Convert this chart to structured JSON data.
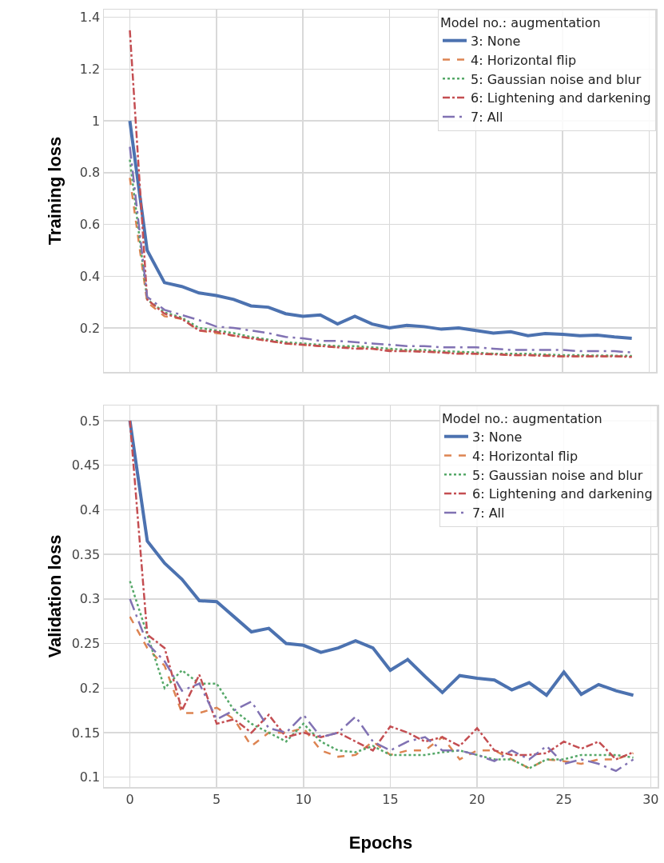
{
  "chart_data": [
    {
      "type": "line",
      "ylabel": "Training loss",
      "legend_title": "Model no.: augmentation",
      "legend": "top right",
      "grid": true,
      "tick_labels": "y",
      "xlim": [
        -1.5,
        30.4
      ],
      "xticks": [
        0,
        5,
        10,
        15,
        20,
        25,
        30
      ],
      "ylim": [
        0.03,
        1.43
      ],
      "yticks": [
        0.2,
        0.4,
        0.6,
        0.8,
        1.0,
        1.2,
        1.4
      ],
      "x": [
        0,
        1,
        2,
        3,
        4,
        5,
        6,
        7,
        8,
        9,
        10,
        11,
        12,
        13,
        14,
        15,
        16,
        17,
        18,
        19,
        20,
        21,
        22,
        23,
        24,
        25,
        26,
        27,
        28,
        29
      ],
      "series": [
        {
          "name": "3: None",
          "color": "#4c72b0",
          "line_style": "solid",
          "values": [
            1.0,
            0.5,
            0.375,
            0.36,
            0.335,
            0.325,
            0.31,
            0.285,
            0.28,
            0.255,
            0.245,
            0.25,
            0.215,
            0.245,
            0.215,
            0.2,
            0.21,
            0.205,
            0.195,
            0.2,
            0.19,
            0.18,
            0.185,
            0.17,
            0.178,
            0.175,
            0.17,
            0.172,
            0.165,
            0.16
          ]
        },
        {
          "name": "4: Horizontal flip",
          "color": "#dd8452",
          "line_style": "dashed",
          "values": [
            0.78,
            0.3,
            0.245,
            0.235,
            0.19,
            0.18,
            0.17,
            0.16,
            0.15,
            0.14,
            0.135,
            0.13,
            0.125,
            0.125,
            0.12,
            0.115,
            0.11,
            0.11,
            0.105,
            0.105,
            0.1,
            0.1,
            0.095,
            0.095,
            0.095,
            0.09,
            0.09,
            0.09,
            0.09,
            0.09
          ]
        },
        {
          "name": "5: Gaussian noise and blur",
          "color": "#55a868",
          "line_style": "dotted",
          "values": [
            0.85,
            0.31,
            0.26,
            0.24,
            0.2,
            0.19,
            0.18,
            0.165,
            0.155,
            0.145,
            0.14,
            0.135,
            0.13,
            0.13,
            0.125,
            0.12,
            0.115,
            0.115,
            0.11,
            0.108,
            0.105,
            0.1,
            0.1,
            0.1,
            0.097,
            0.095,
            0.095,
            0.093,
            0.093,
            0.092
          ]
        },
        {
          "name": "6: Lightening and darkening",
          "color": "#c44e52",
          "line_style": "dashdot",
          "values": [
            1.35,
            0.31,
            0.255,
            0.235,
            0.19,
            0.185,
            0.17,
            0.16,
            0.15,
            0.14,
            0.135,
            0.13,
            0.125,
            0.12,
            0.12,
            0.11,
            0.11,
            0.108,
            0.105,
            0.1,
            0.1,
            0.098,
            0.095,
            0.095,
            0.092,
            0.09,
            0.09,
            0.09,
            0.09,
            0.088
          ]
        },
        {
          "name": "7: All",
          "color": "#8172b3",
          "line_style": "longdashdot",
          "values": [
            0.9,
            0.32,
            0.27,
            0.25,
            0.23,
            0.205,
            0.2,
            0.19,
            0.18,
            0.165,
            0.16,
            0.15,
            0.15,
            0.145,
            0.14,
            0.135,
            0.13,
            0.13,
            0.125,
            0.125,
            0.125,
            0.12,
            0.115,
            0.115,
            0.115,
            0.115,
            0.11,
            0.11,
            0.11,
            0.105
          ]
        }
      ]
    },
    {
      "type": "line",
      "xlabel": "Epochs",
      "ylabel": "Validation loss",
      "legend_title": "Model no.: augmentation",
      "legend": "top right",
      "grid": true,
      "xlim": [
        -1.5,
        30.4
      ],
      "xticks": [
        0,
        5,
        10,
        15,
        20,
        25,
        30
      ],
      "ylim": [
        0.089,
        0.517
      ],
      "yticks": [
        0.1,
        0.15,
        0.2,
        0.25,
        0.3,
        0.35,
        0.4,
        0.45,
        0.5
      ],
      "x": [
        0,
        1,
        2,
        3,
        4,
        5,
        6,
        7,
        8,
        9,
        10,
        11,
        12,
        13,
        14,
        15,
        16,
        17,
        18,
        19,
        20,
        21,
        22,
        23,
        24,
        25,
        26,
        27,
        28,
        29
      ],
      "series": [
        {
          "name": "3: None",
          "color": "#4c72b0",
          "line_style": "solid",
          "values": [
            0.5,
            0.365,
            0.34,
            0.322,
            0.298,
            0.297,
            0.28,
            0.263,
            0.267,
            0.25,
            0.248,
            0.24,
            0.245,
            0.253,
            0.245,
            0.22,
            0.232,
            0.213,
            0.195,
            0.214,
            0.211,
            0.209,
            0.198,
            0.206,
            0.192,
            0.218,
            0.193,
            0.204,
            0.197,
            0.192
          ]
        },
        {
          "name": "4: Horizontal flip",
          "color": "#dd8452",
          "line_style": "dashed",
          "values": [
            0.28,
            0.245,
            0.225,
            0.172,
            0.172,
            0.178,
            0.165,
            0.135,
            0.15,
            0.15,
            0.155,
            0.13,
            0.123,
            0.125,
            0.14,
            0.125,
            0.13,
            0.13,
            0.145,
            0.12,
            0.13,
            0.13,
            0.12,
            0.11,
            0.12,
            0.118,
            0.115,
            0.12,
            0.12,
            0.127
          ]
        },
        {
          "name": "5: Gaussian noise and blur",
          "color": "#55a868",
          "line_style": "dotted",
          "values": [
            0.32,
            0.26,
            0.2,
            0.22,
            0.205,
            0.205,
            0.175,
            0.16,
            0.15,
            0.14,
            0.16,
            0.14,
            0.13,
            0.128,
            0.135,
            0.125,
            0.125,
            0.125,
            0.128,
            0.13,
            0.125,
            0.12,
            0.12,
            0.11,
            0.12,
            0.12,
            0.125,
            0.125,
            0.125,
            0.122
          ]
        },
        {
          "name": "6: Lightening and darkening",
          "color": "#c44e52",
          "line_style": "dashdot",
          "values": [
            0.5,
            0.26,
            0.245,
            0.175,
            0.215,
            0.16,
            0.165,
            0.15,
            0.17,
            0.145,
            0.15,
            0.145,
            0.15,
            0.14,
            0.13,
            0.157,
            0.15,
            0.14,
            0.145,
            0.135,
            0.155,
            0.13,
            0.125,
            0.125,
            0.127,
            0.14,
            0.132,
            0.14,
            0.12,
            0.128
          ]
        },
        {
          "name": "7: All",
          "color": "#8172b3",
          "line_style": "longdashdot",
          "values": [
            0.3,
            0.25,
            0.23,
            0.197,
            0.205,
            0.165,
            0.175,
            0.185,
            0.155,
            0.15,
            0.17,
            0.145,
            0.15,
            0.168,
            0.14,
            0.13,
            0.14,
            0.145,
            0.13,
            0.13,
            0.125,
            0.118,
            0.13,
            0.12,
            0.135,
            0.115,
            0.12,
            0.115,
            0.107,
            0.12
          ]
        }
      ]
    }
  ]
}
